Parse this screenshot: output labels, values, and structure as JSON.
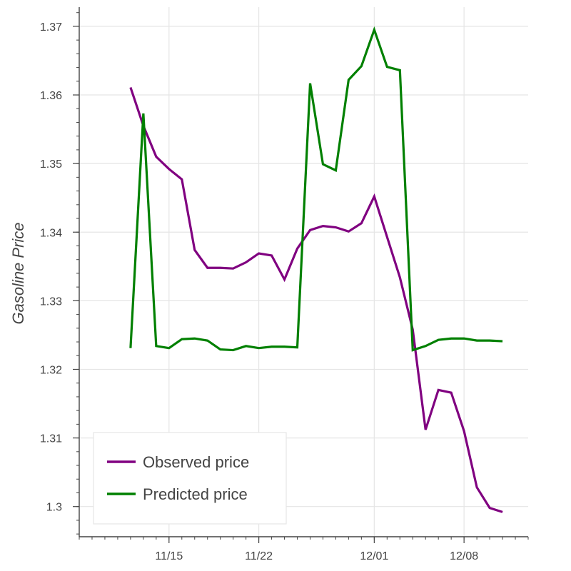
{
  "chart_data": {
    "type": "line",
    "xlabel": "",
    "ylabel": "Gasoline Price",
    "ylim": [
      1.2956,
      1.3728
    ],
    "xlim": [
      "2017-11-08",
      "2017-12-13"
    ],
    "x_ticks": [
      {
        "date": "2017-11-15",
        "label": "11/15"
      },
      {
        "date": "2017-11-22",
        "label": "11/22"
      },
      {
        "date": "2017-12-01",
        "label": "12/01"
      },
      {
        "date": "2017-12-08",
        "label": "12/08"
      }
    ],
    "y_ticks": [
      1.3,
      1.31,
      1.32,
      1.33,
      1.34,
      1.35,
      1.36,
      1.37
    ],
    "y_tick_labels": [
      "1.3",
      "1.31",
      "1.32",
      "1.33",
      "1.34",
      "1.35",
      "1.36",
      "1.37"
    ],
    "grid": true,
    "legend_position": "bottom-left",
    "colors": {
      "observed": "#800080",
      "predicted": "#008000",
      "grid": "#e5e5e5",
      "axis": "#444444"
    },
    "series": [
      {
        "name": "Observed price",
        "color": "#800080",
        "points": [
          [
            "2017-11-12",
            1.3611
          ],
          [
            "2017-11-13",
            1.3555
          ],
          [
            "2017-11-14",
            1.351
          ],
          [
            "2017-11-15",
            1.3492
          ],
          [
            "2017-11-16",
            1.3477
          ],
          [
            "2017-11-17",
            1.3374
          ],
          [
            "2017-11-18",
            1.3348
          ],
          [
            "2017-11-19",
            1.3348
          ],
          [
            "2017-11-20",
            1.3347
          ],
          [
            "2017-11-21",
            1.3356
          ],
          [
            "2017-11-22",
            1.3369
          ],
          [
            "2017-11-23",
            1.3366
          ],
          [
            "2017-11-24",
            1.3331
          ],
          [
            "2017-11-25",
            1.3376
          ],
          [
            "2017-11-26",
            1.3403
          ],
          [
            "2017-11-27",
            1.3409
          ],
          [
            "2017-11-28",
            1.3407
          ],
          [
            "2017-11-29",
            1.3401
          ],
          [
            "2017-11-30",
            1.3413
          ],
          [
            "2017-12-01",
            1.3452
          ],
          [
            "2017-12-02",
            1.3393
          ],
          [
            "2017-12-03",
            1.3334
          ],
          [
            "2017-12-04",
            1.3258
          ],
          [
            "2017-12-05",
            1.3112
          ],
          [
            "2017-12-06",
            1.317
          ],
          [
            "2017-12-07",
            1.3166
          ],
          [
            "2017-12-08",
            1.311
          ],
          [
            "2017-12-09",
            1.3028
          ],
          [
            "2017-12-10",
            1.2998
          ],
          [
            "2017-12-11",
            1.2992
          ]
        ]
      },
      {
        "name": "Predicted price",
        "color": "#008000",
        "points": [
          [
            "2017-11-12",
            1.3231
          ],
          [
            "2017-11-13",
            1.3573
          ],
          [
            "2017-11-14",
            1.3234
          ],
          [
            "2017-11-15",
            1.3231
          ],
          [
            "2017-11-16",
            1.3244
          ],
          [
            "2017-11-17",
            1.3245
          ],
          [
            "2017-11-18",
            1.3242
          ],
          [
            "2017-11-19",
            1.3229
          ],
          [
            "2017-11-20",
            1.3228
          ],
          [
            "2017-11-21",
            1.3234
          ],
          [
            "2017-11-22",
            1.3231
          ],
          [
            "2017-11-23",
            1.3233
          ],
          [
            "2017-11-24",
            1.3233
          ],
          [
            "2017-11-25",
            1.3232
          ],
          [
            "2017-11-26",
            1.3617
          ],
          [
            "2017-11-27",
            1.3499
          ],
          [
            "2017-11-28",
            1.349
          ],
          [
            "2017-11-29",
            1.3622
          ],
          [
            "2017-11-30",
            1.3642
          ],
          [
            "2017-12-01",
            1.3695
          ],
          [
            "2017-12-02",
            1.3641
          ],
          [
            "2017-12-03",
            1.3636
          ],
          [
            "2017-12-04",
            1.3228
          ],
          [
            "2017-12-05",
            1.3234
          ],
          [
            "2017-12-06",
            1.3243
          ],
          [
            "2017-12-07",
            1.3245
          ],
          [
            "2017-12-08",
            1.3245
          ],
          [
            "2017-12-09",
            1.3242
          ],
          [
            "2017-12-10",
            1.3242
          ],
          [
            "2017-12-11",
            1.3241
          ]
        ]
      }
    ]
  }
}
